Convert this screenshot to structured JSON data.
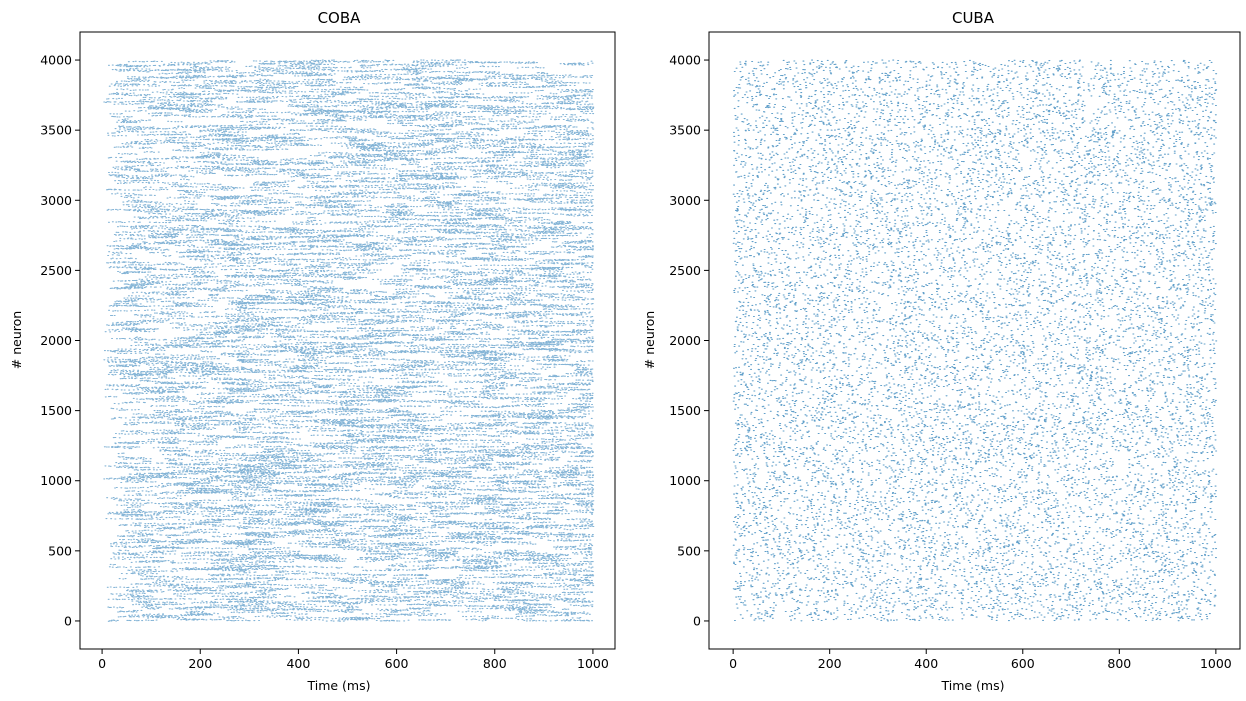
{
  "chart_data": [
    {
      "type": "scatter",
      "title": "COBA",
      "xlabel": "Time (ms)",
      "ylabel": "# neuron",
      "xlim": [
        -45,
        1045
      ],
      "ylim": [
        -200,
        4200
      ],
      "xticks": [
        0,
        200,
        400,
        600,
        800,
        1000
      ],
      "yticks": [
        0,
        500,
        1000,
        1500,
        2000,
        2500,
        3000,
        3500,
        4000
      ],
      "grid": false,
      "color": "#1f77b4",
      "series": [
        {
          "x_range": [
            0,
            1000
          ],
          "y_range": [
            0,
            4000
          ],
          "approx_points": 40000
        }
      ]
    },
    {
      "type": "scatter",
      "title": "CUBA",
      "xlabel": "Time (ms)",
      "ylabel": "# neuron",
      "xlim": [
        -50,
        1050
      ],
      "ylim": [
        -200,
        4200
      ],
      "xticks": [
        0,
        200,
        400,
        600,
        800,
        1000
      ],
      "yticks": [
        0,
        500,
        1000,
        1500,
        2000,
        2500,
        3000,
        3500,
        4000
      ],
      "grid": false,
      "color": "#1f77b4",
      "series": [
        {
          "x_range": [
            0,
            1000
          ],
          "y_range": [
            0,
            4000
          ],
          "approx_points": 14000
        }
      ]
    }
  ]
}
